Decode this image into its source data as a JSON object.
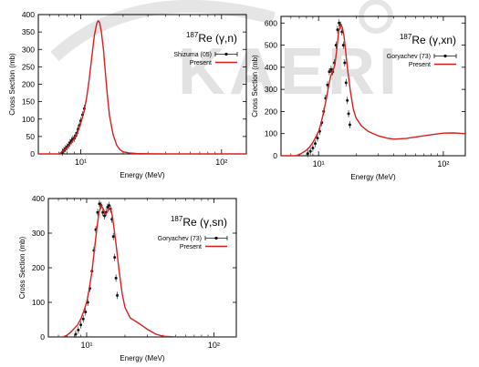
{
  "watermark": {
    "text": "KAERI",
    "color": "#c8c8c8"
  },
  "colors": {
    "model": "#d62020",
    "data": "#111111",
    "axis": "#000000"
  },
  "chart_data": [
    {
      "type": "line",
      "reaction_label": {
        "sup": "187",
        "base": "Re (γ,n)"
      },
      "xlabel": "Energy (MeV)",
      "ylabel": "Cross Section (mb)",
      "xscale": "log",
      "xlim": [
        5,
        150
      ],
      "ylim": [
        0,
        400
      ],
      "yticks": [
        0,
        50,
        100,
        150,
        200,
        250,
        300,
        350,
        400
      ],
      "xticks": [
        10,
        100
      ],
      "xtick_labels": [
        "10¹",
        "10²"
      ],
      "legend": {
        "position": "top-right",
        "entries": [
          "Shizuma (05)",
          "Present"
        ]
      },
      "series": [
        {
          "name": "Shizuma (05)",
          "kind": "points",
          "x": [
            7.4,
            7.6,
            7.8,
            8.0,
            8.2,
            8.4,
            8.6,
            8.8,
            9.0,
            9.2,
            9.4,
            9.6,
            9.8,
            10.0,
            10.3,
            10.6
          ],
          "y": [
            5,
            10,
            15,
            20,
            25,
            32,
            38,
            42,
            45,
            52,
            60,
            72,
            82,
            95,
            112,
            130
          ]
        },
        {
          "name": "Present",
          "kind": "line",
          "x": [
            5,
            7,
            7.5,
            8,
            8.5,
            9,
            9.5,
            10,
            10.5,
            11,
            11.5,
            12,
            12.5,
            13,
            13.3,
            13.6,
            14,
            14.5,
            15,
            15.5,
            16,
            17,
            18,
            19,
            20,
            22,
            25,
            30,
            40,
            60,
            100,
            150
          ],
          "y": [
            0,
            0,
            8,
            18,
            30,
            44,
            62,
            88,
            118,
            160,
            215,
            280,
            340,
            375,
            382,
            378,
            352,
            300,
            230,
            165,
            110,
            55,
            25,
            12,
            6,
            3,
            1,
            0.5,
            0,
            0,
            0,
            0
          ]
        }
      ]
    },
    {
      "type": "line",
      "reaction_label": {
        "sup": "187",
        "base": "Re (γ,xn)"
      },
      "xlabel": "Energy (MeV)",
      "ylabel": "Cross Section (mb)",
      "xscale": "log",
      "xlim": [
        5,
        150
      ],
      "ylim": [
        0,
        630
      ],
      "yticks": [
        0,
        100,
        200,
        300,
        400,
        500,
        600
      ],
      "xticks": [
        10,
        100
      ],
      "xtick_labels": [
        "10¹",
        "10²"
      ],
      "legend": {
        "position": "top-right",
        "entries": [
          "Goryachev (73)",
          "Present"
        ]
      },
      "series": [
        {
          "name": "Goryachev (73)",
          "kind": "points",
          "x": [
            8.2,
            8.6,
            9.0,
            9.4,
            9.8,
            10.2,
            10.6,
            11.0,
            11.4,
            11.8,
            12.2,
            12.6,
            13.0,
            13.4,
            13.8,
            14.2,
            14.6,
            15.0,
            15.4,
            15.8,
            16.2,
            16.6,
            17.0,
            17.4,
            17.8
          ],
          "y": [
            10,
            20,
            35,
            55,
            80,
            110,
            150,
            200,
            260,
            320,
            380,
            390,
            380,
            420,
            500,
            570,
            600,
            590,
            560,
            500,
            420,
            330,
            250,
            190,
            140
          ]
        },
        {
          "name": "Present",
          "kind": "line",
          "x": [
            5,
            6.5,
            7,
            7.5,
            8,
            8.5,
            9,
            9.5,
            10,
            10.5,
            11,
            11.5,
            12,
            12.5,
            13,
            13.5,
            14,
            14.5,
            15,
            15.5,
            16,
            16.5,
            17,
            18,
            19,
            20,
            22,
            25,
            30,
            35,
            40,
            50,
            60,
            80,
            100,
            120,
            150
          ],
          "y": [
            0,
            0,
            5,
            15,
            25,
            40,
            60,
            85,
            110,
            150,
            200,
            255,
            310,
            360,
            380,
            410,
            480,
            560,
            590,
            580,
            540,
            470,
            400,
            290,
            210,
            170,
            135,
            110,
            90,
            80,
            75,
            78,
            85,
            95,
            102,
            103,
            100
          ]
        }
      ]
    },
    {
      "type": "line",
      "reaction_label": {
        "sup": "187",
        "base": "Re (γ,sn)"
      },
      "xlabel": "Energy (MeV)",
      "ylabel": "Cross Section (mb)",
      "xscale": "log",
      "xlim": [
        5,
        150
      ],
      "ylim": [
        0,
        400
      ],
      "yticks": [
        0,
        100,
        200,
        300,
        400
      ],
      "xticks": [
        10,
        100
      ],
      "xtick_labels": [
        "10¹",
        "10²"
      ],
      "legend": {
        "position": "top-right",
        "entries": [
          "Goryachev (73)",
          "Present"
        ]
      },
      "series": [
        {
          "name": "Goryachev (73)",
          "kind": "points",
          "x": [
            8.2,
            8.6,
            9.0,
            9.4,
            9.8,
            10.2,
            10.6,
            11.0,
            11.4,
            11.8,
            12.2,
            12.6,
            13.0,
            13.4,
            13.8,
            14.2,
            14.6,
            15.0,
            15.4,
            15.8,
            16.2,
            16.6,
            17.0,
            17.4
          ],
          "y": [
            8,
            20,
            35,
            52,
            72,
            100,
            140,
            190,
            250,
            310,
            360,
            385,
            380,
            360,
            350,
            360,
            375,
            380,
            370,
            340,
            290,
            230,
            170,
            120
          ]
        },
        {
          "name": "Present",
          "kind": "line",
          "x": [
            5,
            6.5,
            7,
            7.5,
            8,
            8.5,
            9,
            9.5,
            10,
            10.5,
            11,
            11.5,
            12,
            12.5,
            13,
            13.5,
            14,
            14.5,
            15,
            15.5,
            16,
            17,
            18,
            19,
            20,
            22,
            25,
            28,
            30,
            35,
            40,
            50,
            60,
            100,
            150
          ],
          "y": [
            0,
            0,
            5,
            14,
            25,
            35,
            52,
            75,
            100,
            140,
            190,
            250,
            310,
            360,
            380,
            370,
            355,
            360,
            372,
            370,
            345,
            270,
            190,
            125,
            85,
            55,
            42,
            30,
            22,
            8,
            2,
            0,
            0,
            0,
            0
          ]
        }
      ]
    }
  ]
}
